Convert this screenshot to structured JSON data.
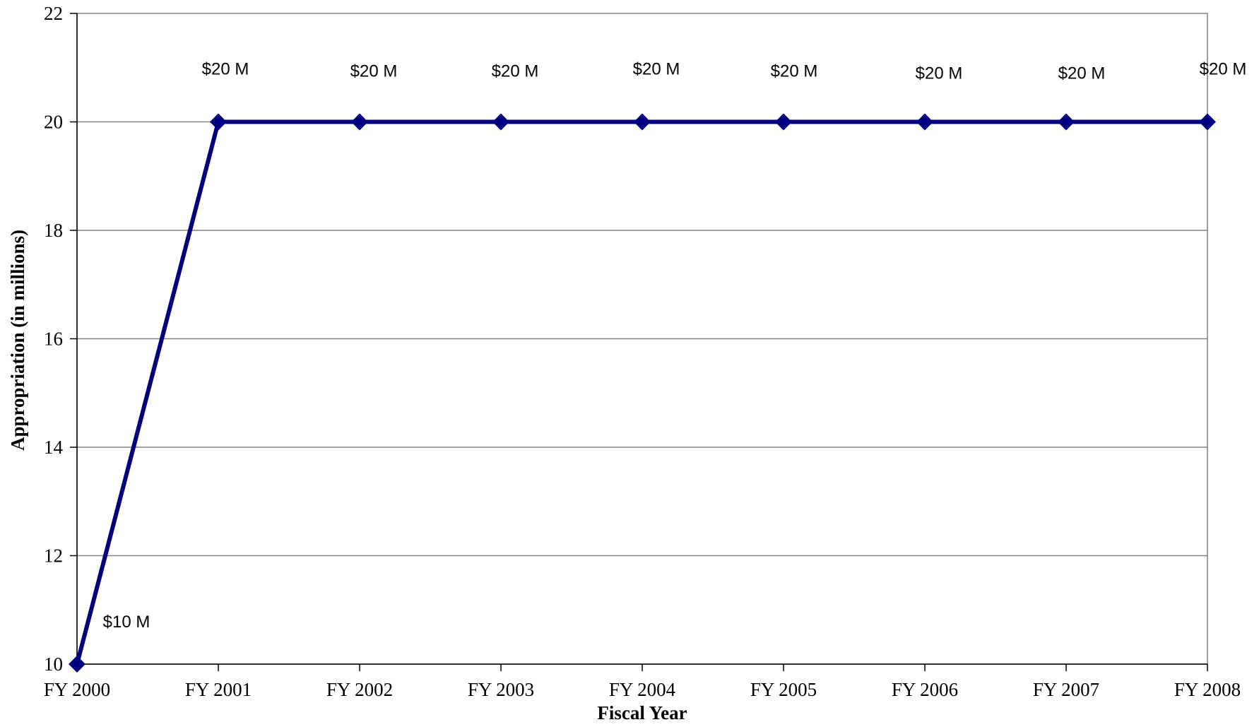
{
  "chart_data": {
    "type": "line",
    "title": "",
    "xlabel": "Fiscal Year",
    "ylabel": "Appropriation (in millions)",
    "categories": [
      "FY 2000",
      "FY 2001",
      "FY 2002",
      "FY 2003",
      "FY 2004",
      "FY 2005",
      "FY 2006",
      "FY 2007",
      "FY 2008"
    ],
    "series": [
      {
        "values": [
          10,
          20,
          20,
          20,
          20,
          20,
          20,
          20,
          20
        ],
        "data_labels": [
          "$10 M",
          "$20 M",
          "$20 M",
          "$20 M",
          "$20 M",
          "$20 M",
          "$20 M",
          "$20 M",
          "$20 M"
        ],
        "color": "#000080"
      }
    ],
    "ylim": [
      10,
      22
    ],
    "yticks": [
      10,
      12,
      14,
      16,
      18,
      20,
      22
    ],
    "grid": true,
    "legend": "none"
  }
}
